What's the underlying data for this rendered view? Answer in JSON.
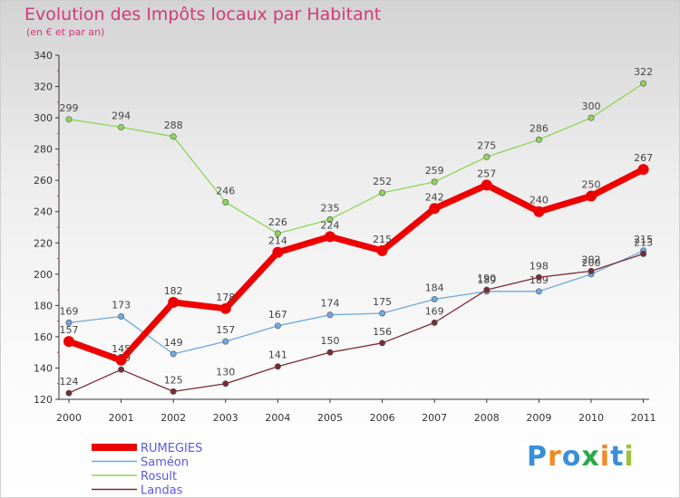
{
  "title": "Evolution des Impôts locaux par Habitant",
  "subtitle": "(en € et par an)",
  "brand": {
    "text": "Proxiti",
    "letters": [
      "P",
      "r",
      "o",
      "x",
      "i",
      "t",
      "i"
    ],
    "colors": [
      "#3b8fd8",
      "#f08a24",
      "#3b8fd8",
      "#2aa84a",
      "#f08a24",
      "#3b8fd8",
      "#9ac43c"
    ]
  },
  "chart_data": {
    "type": "line",
    "x": [
      "2000",
      "2001",
      "2002",
      "2003",
      "2004",
      "2005",
      "2006",
      "2007",
      "2008",
      "2009",
      "2010",
      "2011"
    ],
    "ylim": [
      120,
      340
    ],
    "yticks": [
      120,
      140,
      160,
      180,
      200,
      220,
      240,
      260,
      280,
      300,
      320,
      340
    ],
    "grid": false,
    "legend_position": "bottom-left",
    "series": [
      {
        "name": "RUMEGIES",
        "color": "#ee0000",
        "values": [
          157,
          145,
          182,
          178,
          214,
          224,
          215,
          242,
          257,
          240,
          250,
          267
        ]
      },
      {
        "name": "Saméon",
        "color": "#6fa8dc",
        "values": [
          169,
          173,
          149,
          157,
          167,
          174,
          175,
          184,
          189,
          189,
          200,
          215
        ]
      },
      {
        "name": "Rosult",
        "color": "#8ed45a",
        "values": [
          299,
          294,
          288,
          246,
          226,
          235,
          252,
          259,
          275,
          286,
          300,
          322
        ]
      },
      {
        "name": "Landas",
        "color": "#7a2a35",
        "values": [
          124,
          139,
          125,
          130,
          141,
          150,
          156,
          169,
          190,
          198,
          202,
          213
        ]
      }
    ]
  }
}
